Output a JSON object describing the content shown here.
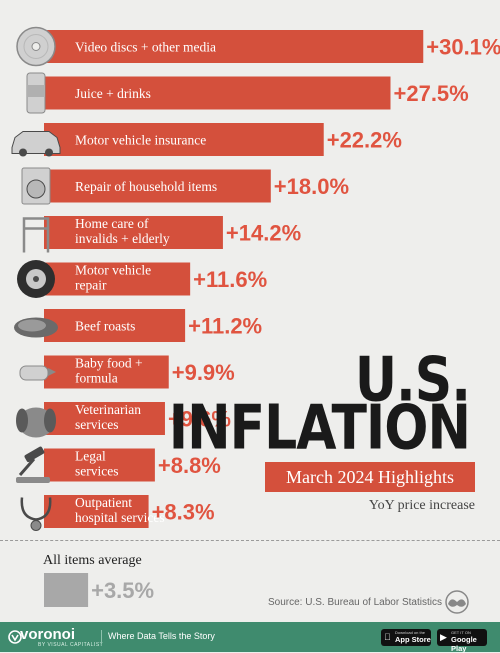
{
  "chart_data": {
    "type": "bar",
    "orientation": "horizontal",
    "unit": "%",
    "categories": [
      "Video discs + other media",
      "Juice + drinks",
      "Motor vehicle insurance",
      "Repair of household items",
      "Home care of invalids + elderly",
      "Motor vehicle repair",
      "Beef roasts",
      "Baby food + formula",
      "Veterinarian services",
      "Legal services",
      "Outpatient hospital services"
    ],
    "category_lines": [
      [
        "Video discs + other media"
      ],
      [
        "Juice + drinks"
      ],
      [
        "Motor vehicle insurance"
      ],
      [
        "Repair of household items"
      ],
      [
        "Home care of",
        "invalids + elderly"
      ],
      [
        "Motor vehicle",
        "repair"
      ],
      [
        "Beef roasts"
      ],
      [
        "Baby food +",
        "formula"
      ],
      [
        "Veterinarian",
        "services"
      ],
      [
        "Legal",
        "services"
      ],
      [
        "Outpatient",
        "hospital services"
      ]
    ],
    "values": [
      30.1,
      27.5,
      22.2,
      18.0,
      14.2,
      11.6,
      11.2,
      9.9,
      9.6,
      8.8,
      8.3
    ],
    "value_labels": [
      "+30.1%",
      "+27.5%",
      "+22.2%",
      "+18.0%",
      "+14.2%",
      "+11.6%",
      "+11.2%",
      "+9.9%",
      "+9.6%",
      "+8.8%",
      "+8.3%"
    ],
    "icons": [
      "disc-icon",
      "can-icon",
      "car-icon",
      "washing-machine-icon",
      "walker-icon",
      "tire-icon",
      "beef-roast-icon",
      "baby-bottle-icon",
      "dog-icon",
      "gavel-icon",
      "stethoscope-icon"
    ],
    "average": {
      "label": "All items average",
      "value": 3.5,
      "value_label": "+3.5%"
    },
    "title_line1": "U.S.",
    "title_line2": "INFLATION",
    "subtitle": "March 2024 Highlights",
    "metric": "YoY price increase",
    "colors": {
      "bar": "#d4503c",
      "value_text": "#e05440",
      "average_bar": "#a8a8a8",
      "background": "#eeeeec",
      "footer": "#3f8b6e"
    }
  },
  "source": "Source: U.S. Bureau of Labor Statistics",
  "footer": {
    "brand": "voronoi",
    "brand_sub": "BY VISUAL CAPITALIST",
    "tagline": "Where Data Tells the Story",
    "app_store_small": "Download on the",
    "app_store": "App Store",
    "play_store_small": "GET IT ON",
    "play_store": "Google Play"
  }
}
